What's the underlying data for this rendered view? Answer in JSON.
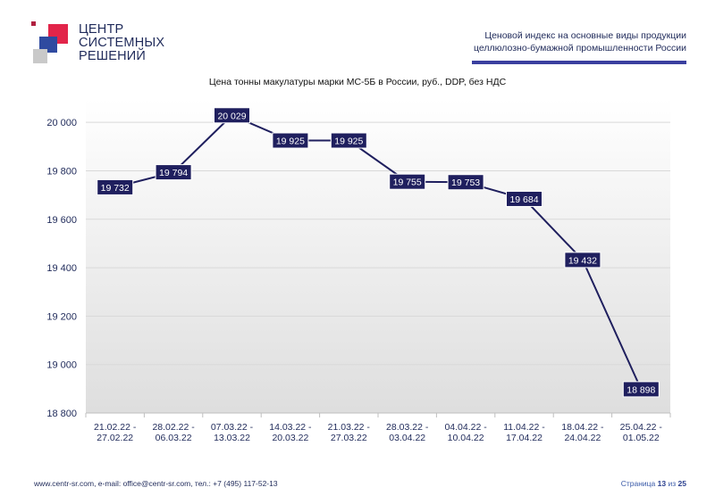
{
  "logo": {
    "lines": [
      "ЦЕНТР",
      "СИСТЕМНЫХ",
      "РЕШЕНИЙ"
    ]
  },
  "header": {
    "line1": "Ценовой индекс на основные виды продукции",
    "line2": "целлюлозно-бумажной промышленности России"
  },
  "chart_data": {
    "type": "line",
    "title": "Цена тонны макулатуры марки МС-5Б в России, руб., DDP, без НДС",
    "categories": [
      [
        "21.02.22 -",
        "27.02.22"
      ],
      [
        "28.02.22 -",
        "06.03.22"
      ],
      [
        "07.03.22 -",
        "13.03.22"
      ],
      [
        "14.03.22 -",
        "20.03.22"
      ],
      [
        "21.03.22 -",
        "27.03.22"
      ],
      [
        "28.03.22 -",
        "03.04.22"
      ],
      [
        "04.04.22 -",
        "10.04.22"
      ],
      [
        "11.04.22 -",
        "17.04.22"
      ],
      [
        "18.04.22 -",
        "24.04.22"
      ],
      [
        "25.04.22 -",
        "01.05.22"
      ]
    ],
    "values": [
      19732,
      19794,
      20029,
      19925,
      19925,
      19755,
      19753,
      19684,
      19432,
      18898
    ],
    "data_labels": [
      "19 732",
      "19 794",
      "20 029",
      "19 925",
      "19 925",
      "19 755",
      "19 753",
      "19 684",
      "19 432",
      "18 898"
    ],
    "ylim": [
      18800,
      20100
    ],
    "yticks": [
      18800,
      19000,
      19200,
      19400,
      19600,
      19800,
      20000
    ],
    "ytick_labels": [
      "18 800",
      "19 000",
      "19 200",
      "19 400",
      "19 600",
      "19 800",
      "20 000"
    ],
    "grid": true,
    "colors": {
      "line": "#1f1f5e",
      "label_bg": "#1f1f5e",
      "label_text": "#ffffff",
      "grid": "#d9d9d9"
    }
  },
  "footer": {
    "contacts": "www.centr-sr.com, e-mail: office@centr-sr.com, тел.: +7 (495) 117-52-13",
    "page_word": "Страница",
    "page_current": "13",
    "page_of": "из",
    "page_total": "25"
  }
}
